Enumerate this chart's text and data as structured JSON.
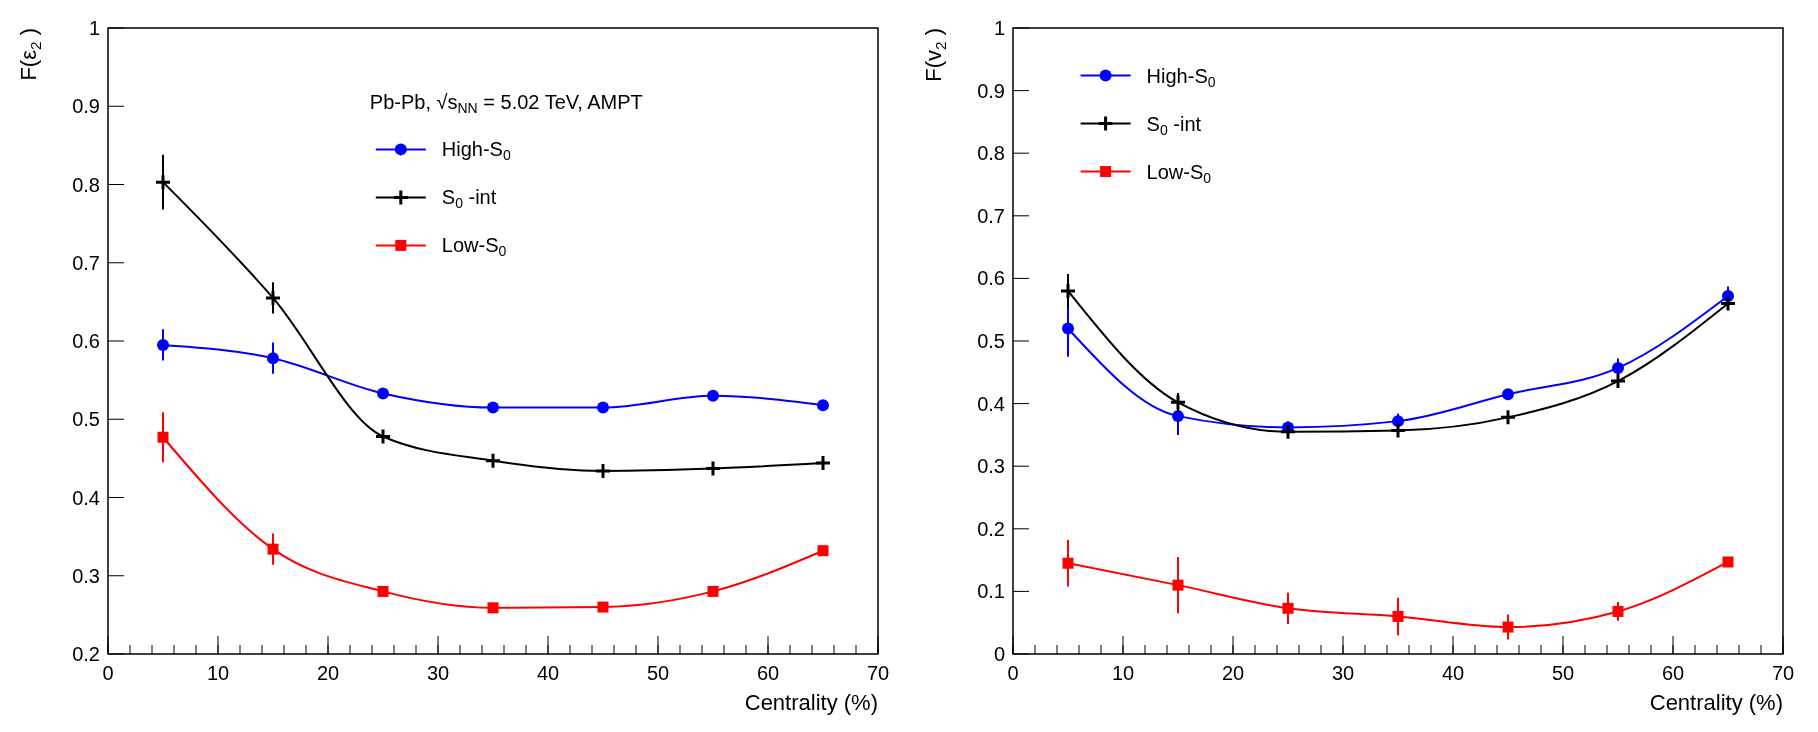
{
  "chart_data": [
    {
      "type": "line",
      "ylabel": "F(ε$_{2}$)",
      "xlabel": "Centrality (%)",
      "x": [
        5,
        15,
        25,
        35,
        45,
        55,
        65
      ],
      "xlim": [
        0,
        70
      ],
      "xticks": [
        0,
        10,
        20,
        30,
        40,
        50,
        60,
        70
      ],
      "ylim": [
        0.2,
        1
      ],
      "yticks": [
        {
          "value": 0.2,
          "label": "0.2"
        },
        {
          "value": 0.3,
          "label": "0.3"
        },
        {
          "value": 0.4,
          "label": "0.4"
        },
        {
          "value": 0.5,
          "label": "0.5"
        },
        {
          "value": 0.6,
          "label": "0.6"
        },
        {
          "value": 0.7,
          "label": "0.7"
        },
        {
          "value": 0.8,
          "label": "0.8"
        },
        {
          "value": 0.9,
          "label": "0.9"
        },
        {
          "value": 1,
          "label": "1"
        }
      ],
      "grid": false,
      "legend": "top",
      "annotations": [
        "Pb-Pb,  √s$_{NN}$ = 5.02 TeV, AMPT"
      ],
      "series": [
        {
          "name": "High-S$_{0}$",
          "color": "#0000ff",
          "marker": "circle",
          "values": [
            0.595,
            0.578,
            0.533,
            0.515,
            0.515,
            0.53,
            0.518
          ],
          "errors": [
            0.02,
            0.02,
            0.006,
            0.006,
            0.005,
            0.005,
            0.005
          ]
        },
        {
          "name": "S$_{0}$-int",
          "color": "#000000",
          "marker": "cross",
          "values": [
            0.803,
            0.655,
            0.478,
            0.447,
            0.434,
            0.437,
            0.444
          ],
          "errors": [
            0.035,
            0.02,
            0.007,
            0.006,
            0.005,
            0.005,
            0.005
          ]
        },
        {
          "name": "Low-S$_{0}$",
          "color": "#ff0000",
          "marker": "square",
          "values": [
            0.477,
            0.334,
            0.28,
            0.259,
            0.26,
            0.28,
            0.332
          ],
          "errors": [
            0.032,
            0.02,
            0.006,
            0.005,
            0.005,
            0.005,
            0.005
          ]
        }
      ]
    },
    {
      "type": "line",
      "ylabel": "F(v$_{2}$)",
      "xlabel": "Centrality (%)",
      "x": [
        5,
        15,
        25,
        35,
        45,
        55,
        65
      ],
      "xlim": [
        0,
        70
      ],
      "xticks": [
        0,
        10,
        20,
        30,
        40,
        50,
        60,
        70
      ],
      "ylim": [
        0,
        1
      ],
      "yticks": [
        {
          "value": 0,
          "label": "0"
        },
        {
          "value": 0.1,
          "label": "0.1"
        },
        {
          "value": 0.2,
          "label": "0.2"
        },
        {
          "value": 0.3,
          "label": "0.3"
        },
        {
          "value": 0.4,
          "label": "0.4"
        },
        {
          "value": 0.5,
          "label": "0.5"
        },
        {
          "value": 0.6,
          "label": "0.6"
        },
        {
          "value": 0.7,
          "label": "0.7"
        },
        {
          "value": 0.8,
          "label": "0.8"
        },
        {
          "value": 0.9,
          "label": "0.9"
        },
        {
          "value": 1,
          "label": "1"
        }
      ],
      "grid": false,
      "legend": "top left",
      "series": [
        {
          "name": "High-S$_{0}$",
          "color": "#0000ff",
          "marker": "circle",
          "values": [
            0.52,
            0.38,
            0.362,
            0.372,
            0.415,
            0.457,
            0.572
          ],
          "errors": [
            0.045,
            0.03,
            0.01,
            0.012,
            0.008,
            0.015,
            0.015
          ]
        },
        {
          "name": "S$_{0}$-int",
          "color": "#000000",
          "marker": "cross",
          "values": [
            0.58,
            0.402,
            0.355,
            0.357,
            0.378,
            0.436,
            0.56
          ],
          "errors": [
            0.027,
            0.015,
            0.008,
            0.008,
            0.008,
            0.008,
            0.008
          ]
        },
        {
          "name": "Low-S$_{0}$",
          "color": "#ff0000",
          "marker": "square",
          "values": [
            0.145,
            0.11,
            0.073,
            0.06,
            0.043,
            0.068,
            0.147
          ],
          "errors": [
            0.037,
            0.045,
            0.025,
            0.03,
            0.02,
            0.015,
            0.008
          ]
        }
      ]
    }
  ]
}
